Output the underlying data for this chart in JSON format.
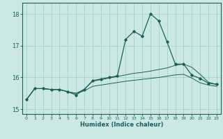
{
  "title": "",
  "xlabel": "Humidex (Indice chaleur)",
  "xlim": [
    -0.5,
    23.5
  ],
  "ylim": [
    14.85,
    18.35
  ],
  "yticks": [
    15,
    16,
    17,
    18
  ],
  "xticks": [
    0,
    1,
    2,
    3,
    4,
    5,
    6,
    7,
    8,
    9,
    10,
    11,
    12,
    13,
    14,
    15,
    16,
    17,
    18,
    19,
    20,
    21,
    22,
    23
  ],
  "bg_color": "#cce8e4",
  "line_color": "#1a5f5a",
  "grid_color": "#9eccc7",
  "main_line": [
    15.3,
    15.65,
    15.65,
    15.62,
    15.62,
    15.55,
    15.45,
    15.62,
    15.9,
    15.95,
    16.0,
    16.05,
    17.2,
    17.45,
    17.3,
    18.0,
    17.78,
    17.12,
    16.42,
    16.42,
    16.07,
    15.97,
    15.82,
    15.78
  ],
  "lower_line": [
    15.3,
    15.65,
    15.65,
    15.62,
    15.62,
    15.55,
    15.5,
    15.58,
    15.72,
    15.76,
    15.8,
    15.84,
    15.88,
    15.91,
    15.94,
    15.97,
    16.0,
    16.04,
    16.08,
    16.1,
    15.98,
    15.83,
    15.76,
    15.72
  ],
  "upper_line": [
    15.3,
    15.65,
    15.65,
    15.62,
    15.62,
    15.55,
    15.5,
    15.63,
    15.88,
    15.93,
    15.98,
    16.03,
    16.08,
    16.13,
    16.16,
    16.2,
    16.25,
    16.3,
    16.38,
    16.42,
    16.32,
    16.1,
    15.85,
    15.78
  ]
}
